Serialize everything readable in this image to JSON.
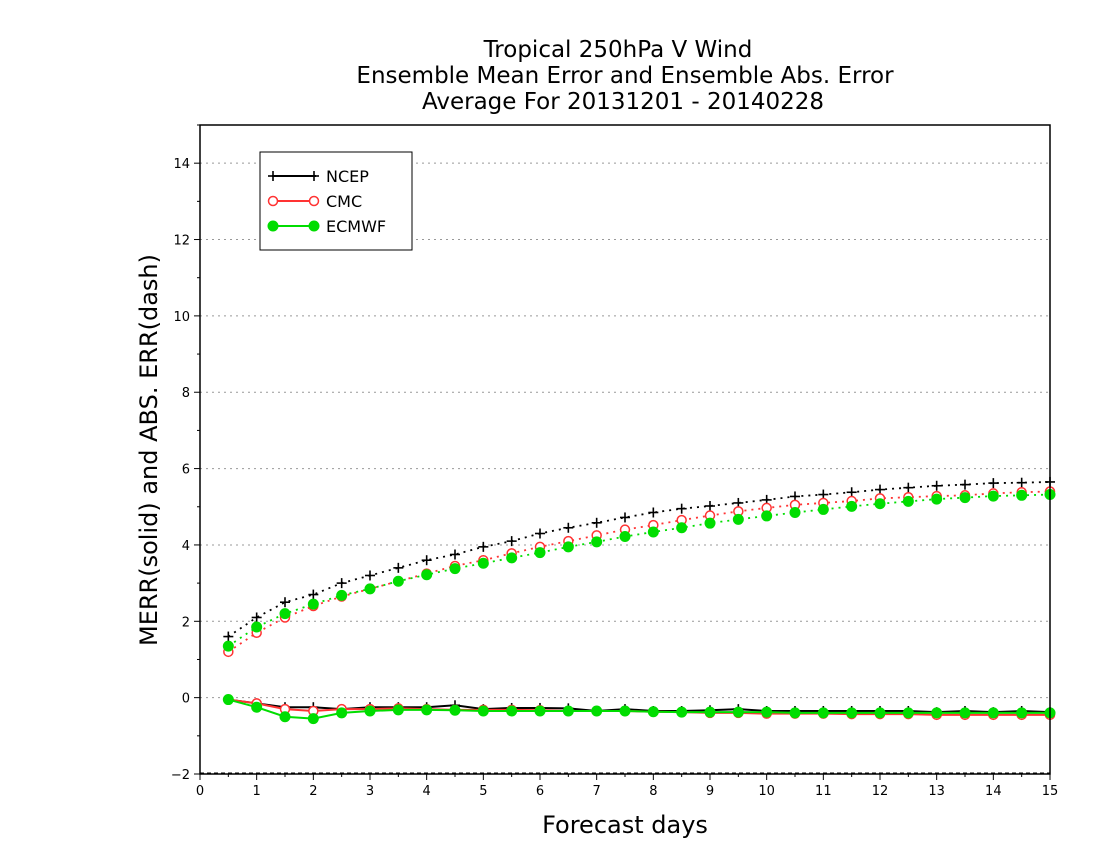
{
  "chart_data": {
    "type": "line",
    "title_lines": [
      "Tropical 250hPa V Wind",
      "Ensemble Mean Error and Ensemble Abs. Error",
      "Average For 20131201 - 20140228"
    ],
    "xlabel": "Forecast days",
    "ylabel": "MERR(solid) and ABS. ERR(dash)",
    "xlim": [
      0,
      15
    ],
    "ylim": [
      -2,
      15
    ],
    "xticks": [
      "0",
      "1",
      "2",
      "3",
      "4",
      "5",
      "6",
      "7",
      "8",
      "9",
      "10",
      "11",
      "12",
      "13",
      "14",
      "15"
    ],
    "yticks": [
      "−2",
      "0",
      "2",
      "4",
      "6",
      "8",
      "10",
      "12",
      "14"
    ],
    "ytick_values": [
      -2,
      0,
      2,
      4,
      6,
      8,
      10,
      12,
      14
    ],
    "grid": "horizontal dotted",
    "legend_position": "top-left",
    "x": [
      0.5,
      1,
      1.5,
      2,
      2.5,
      3,
      3.5,
      4,
      4.5,
      5,
      5.5,
      6,
      6.5,
      7,
      7.5,
      8,
      8.5,
      9,
      9.5,
      10,
      10.5,
      11,
      11.5,
      12,
      12.5,
      13,
      13.5,
      14,
      14.5,
      15
    ],
    "series": [
      {
        "name": "NCEP",
        "color": "#000000",
        "marker": "plus",
        "abs_error": [
          1.6,
          2.1,
          2.5,
          2.7,
          3.0,
          3.2,
          3.4,
          3.6,
          3.75,
          3.95,
          4.1,
          4.3,
          4.45,
          4.58,
          4.72,
          4.85,
          4.95,
          5.02,
          5.1,
          5.18,
          5.27,
          5.32,
          5.38,
          5.45,
          5.5,
          5.55,
          5.58,
          5.62,
          5.63,
          5.65
        ],
        "mean_error": [
          -0.05,
          -0.15,
          -0.25,
          -0.25,
          -0.3,
          -0.25,
          -0.25,
          -0.25,
          -0.2,
          -0.3,
          -0.27,
          -0.27,
          -0.28,
          -0.35,
          -0.3,
          -0.35,
          -0.35,
          -0.33,
          -0.3,
          -0.35,
          -0.35,
          -0.35,
          -0.35,
          -0.35,
          -0.35,
          -0.38,
          -0.35,
          -0.38,
          -0.35,
          -0.38
        ]
      },
      {
        "name": "CMC",
        "color": "#ff3333",
        "marker": "open-circle",
        "abs_error": [
          1.2,
          1.7,
          2.1,
          2.4,
          2.65,
          2.85,
          3.05,
          3.25,
          3.45,
          3.6,
          3.78,
          3.95,
          4.1,
          4.25,
          4.4,
          4.52,
          4.65,
          4.77,
          4.88,
          4.97,
          5.05,
          5.1,
          5.15,
          5.22,
          5.25,
          5.28,
          5.3,
          5.35,
          5.38,
          5.4
        ],
        "mean_error": [
          -0.05,
          -0.15,
          -0.3,
          -0.35,
          -0.3,
          -0.3,
          -0.28,
          -0.3,
          -0.32,
          -0.32,
          -0.32,
          -0.33,
          -0.35,
          -0.35,
          -0.35,
          -0.37,
          -0.38,
          -0.4,
          -0.4,
          -0.42,
          -0.42,
          -0.42,
          -0.43,
          -0.43,
          -0.43,
          -0.45,
          -0.45,
          -0.45,
          -0.45,
          -0.45
        ]
      },
      {
        "name": "ECMWF",
        "color": "#00dd00",
        "marker": "filled-circle",
        "abs_error": [
          1.35,
          1.85,
          2.2,
          2.45,
          2.68,
          2.85,
          3.05,
          3.22,
          3.38,
          3.52,
          3.66,
          3.8,
          3.95,
          4.08,
          4.22,
          4.34,
          4.45,
          4.57,
          4.67,
          4.76,
          4.85,
          4.93,
          5.01,
          5.08,
          5.14,
          5.2,
          5.24,
          5.28,
          5.3,
          5.32
        ],
        "mean_error": [
          -0.05,
          -0.25,
          -0.5,
          -0.55,
          -0.4,
          -0.35,
          -0.32,
          -0.32,
          -0.33,
          -0.35,
          -0.35,
          -0.35,
          -0.35,
          -0.35,
          -0.35,
          -0.37,
          -0.38,
          -0.38,
          -0.38,
          -0.38,
          -0.4,
          -0.4,
          -0.4,
          -0.4,
          -0.4,
          -0.4,
          -0.4,
          -0.4,
          -0.4,
          -0.4
        ]
      }
    ]
  }
}
